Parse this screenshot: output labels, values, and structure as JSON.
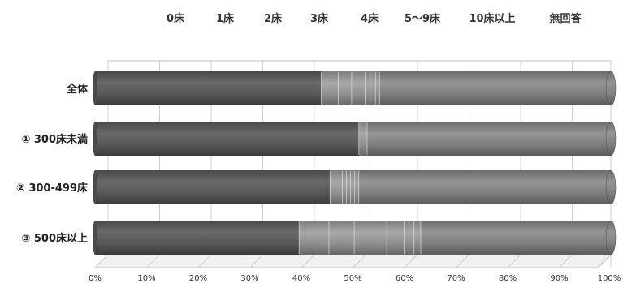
{
  "chart_data": {
    "type": "bar",
    "orientation": "horizontal",
    "stacked": true,
    "percent": true,
    "categories": [
      "全体",
      "① 300床未満",
      "② 300-499床",
      "③ 500床以上"
    ],
    "legend": [
      "0床",
      "1床",
      "2床",
      "3床",
      "4床",
      "5～9床",
      "10床以上",
      "無回答"
    ],
    "legend_position": "top",
    "series": [
      {
        "name": "0床",
        "values": [
          43.9,
          51.2,
          45.6,
          39.6
        ]
      },
      {
        "name": "1床",
        "values": [
          3.3,
          1.6,
          2.4,
          5.8
        ]
      },
      {
        "name": "2床",
        "values": [
          2.6,
          0,
          0.8,
          4.9
        ]
      },
      {
        "name": "3床",
        "values": [
          2.6,
          0,
          0.8,
          6.3
        ]
      },
      {
        "name": "4床",
        "values": [
          1.0,
          0,
          0.8,
          3.4
        ]
      },
      {
        "name": "5～9床",
        "values": [
          1.0,
          0,
          0.8,
          1.9
        ]
      },
      {
        "name": "10床以上",
        "values": [
          0.8,
          0,
          0,
          1.3
        ]
      },
      {
        "name": "無回答",
        "values": [
          44.8,
          47.2,
          48.8,
          36.8
        ]
      }
    ],
    "xlim": [
      0,
      100
    ],
    "x_ticks": [
      "0%",
      "10%",
      "20%",
      "30%",
      "40%",
      "50%",
      "60%",
      "70%",
      "80%",
      "90%",
      "100%"
    ],
    "grid": true,
    "colors": {
      "dark": "#585858",
      "mid": "#7a7a7a",
      "light": "#8f8f8f",
      "separator": "#e8e8e8",
      "gridline": "#cfcfcf"
    }
  }
}
